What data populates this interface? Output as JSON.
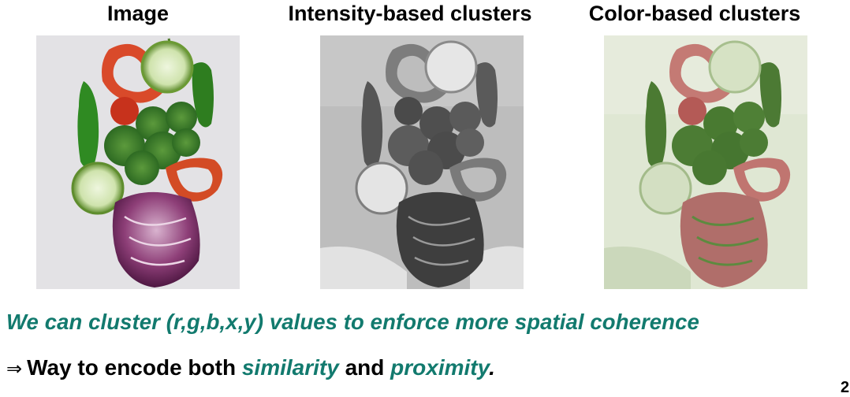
{
  "slide": {
    "panels": [
      {
        "title": "Image"
      },
      {
        "title": "Intensity-based clusters"
      },
      {
        "title": "Color-based clusters"
      }
    ],
    "caption": "We can cluster (r,g,b,x,y) values to enforce more spatial coherence",
    "bullet": {
      "symbol": "⇒",
      "lead": "Way to encode both ",
      "term1": "similarity",
      "middle": " and ",
      "term2": "proximity",
      "end": "."
    },
    "page_number": "2"
  },
  "colors": {
    "accent_teal": "#127a6e",
    "title_text": "#000000"
  }
}
